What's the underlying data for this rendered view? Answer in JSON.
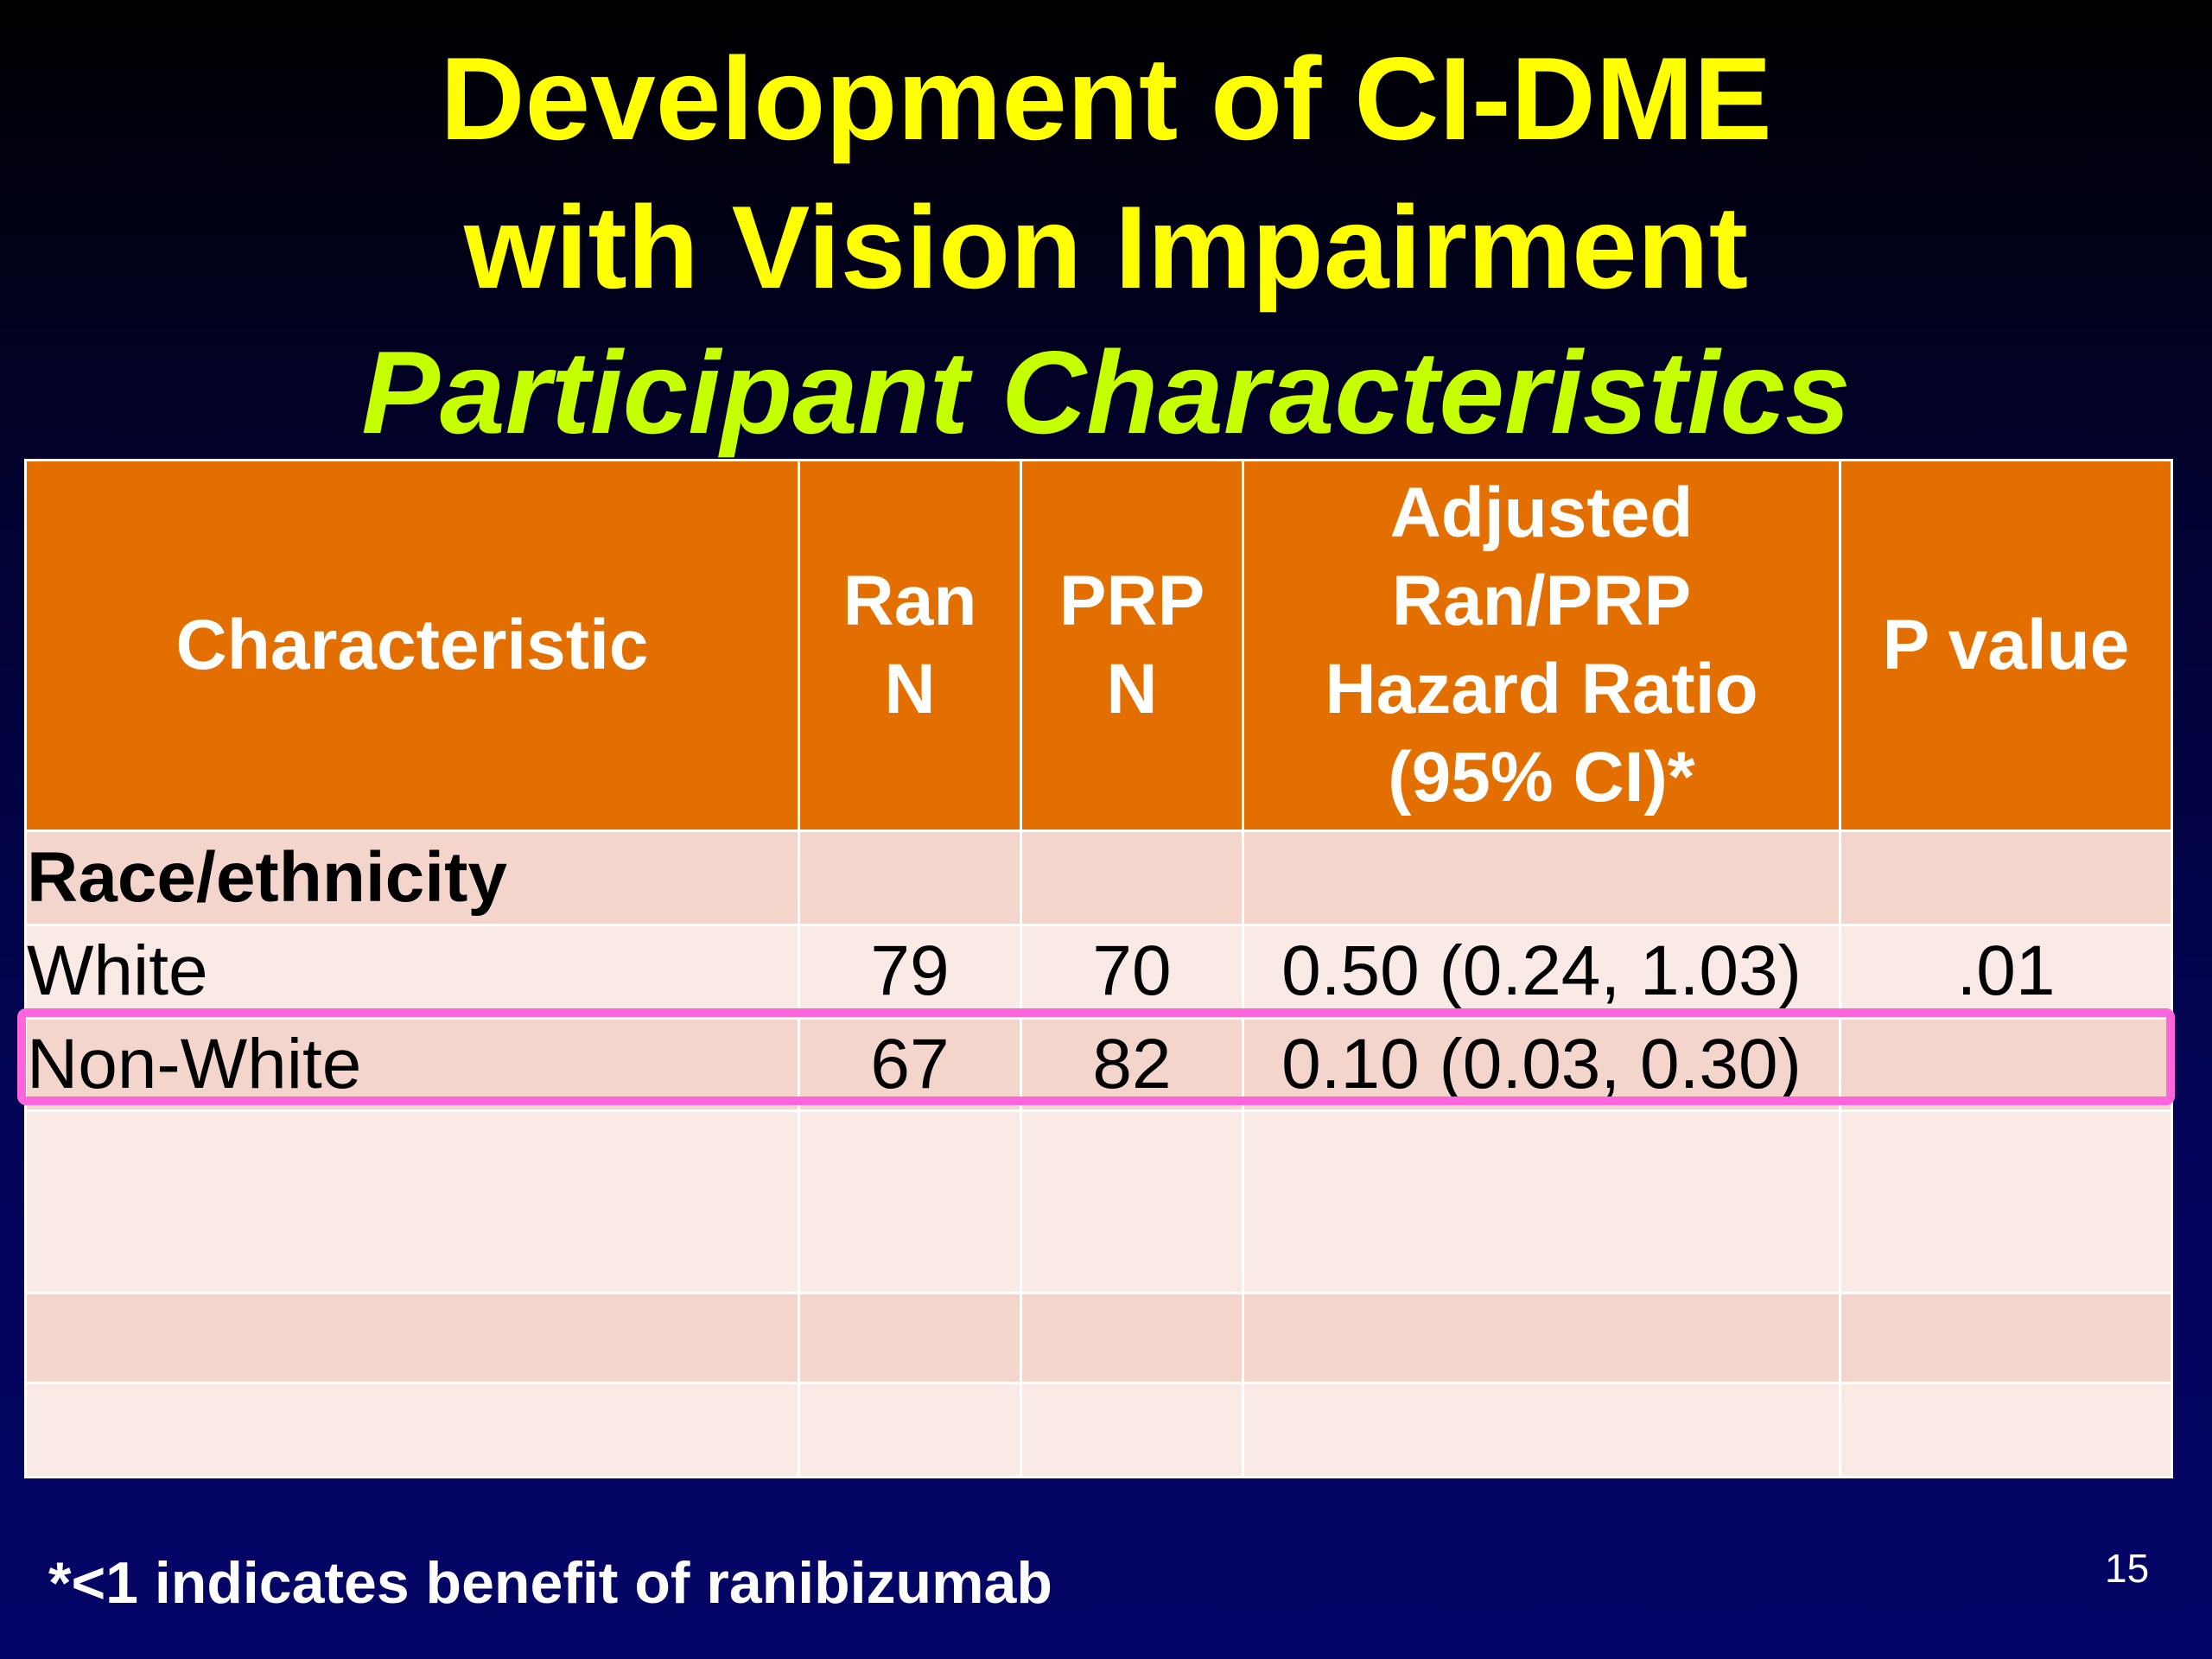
{
  "slide": {
    "title_line1": "Development of CI-DME",
    "title_line2": "with Vision Impairment",
    "subtitle": "Participant Characteristics",
    "footnote": "*<1 indicates benefit of ranibizumab",
    "page_number": "15"
  },
  "table": {
    "headers": {
      "characteristic": "Characteristic",
      "ran_n_line1": "Ran",
      "ran_n_line2": "N",
      "prp_n_line1": "PRP",
      "prp_n_line2": "N",
      "hr_line1": "Adjusted",
      "hr_line2": "Ran/PRP",
      "hr_line3": "Hazard Ratio",
      "hr_line4": "(95% CI)*",
      "p_value": "P value"
    },
    "section_label": "Race/ethnicity",
    "rows": [
      {
        "characteristic": "White",
        "ran_n": "79",
        "prp_n": "70",
        "hazard_ratio": "0.50 (0.24, 1.03)",
        "p_value": ".01"
      },
      {
        "characteristic": "Non-White",
        "ran_n": "67",
        "prp_n": "82",
        "hazard_ratio": "0.10 (0.03, 0.30)",
        "p_value": ""
      }
    ],
    "highlighted_row": "Non-White"
  },
  "colors": {
    "title": "#ffff00",
    "subtitle": "#c6ff00",
    "header_bg": "#e36f00",
    "row_dark": "#f4d5cc",
    "row_light": "#f9eae6",
    "highlight_border": "#ff66dd"
  }
}
